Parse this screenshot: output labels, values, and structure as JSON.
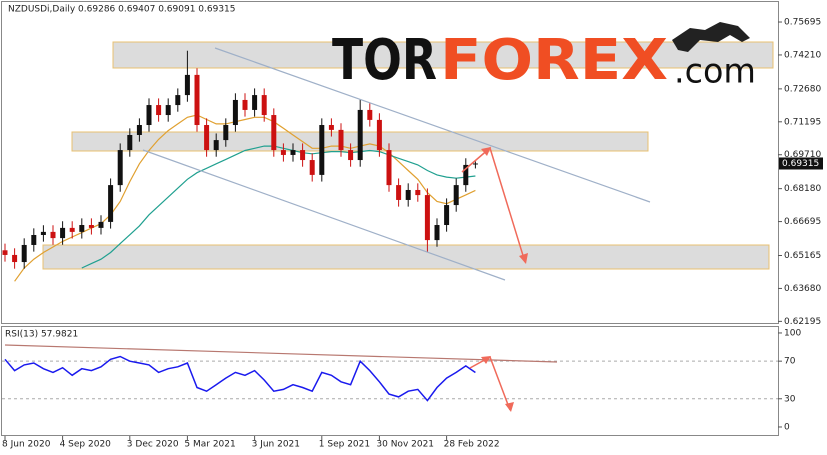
{
  "chart_data": [
    {
      "type": "candlestick",
      "title": "NZDUSDi,Daily  0.69286 0.69407 0.69091 0.69315",
      "categories": [
        "8 Jun 2020",
        null,
        null,
        null,
        null,
        null,
        "4 Sep 2020",
        null,
        null,
        null,
        null,
        null,
        null,
        "3 Dec 2020",
        null,
        null,
        null,
        null,
        null,
        "5 Mar 2021",
        null,
        null,
        null,
        null,
        null,
        null,
        "3 Jun 2021",
        null,
        null,
        null,
        null,
        null,
        null,
        "1 Sep 2021",
        null,
        null,
        null,
        null,
        null,
        "30 Nov 2021",
        null,
        null,
        null,
        null,
        null,
        null,
        "28 Feb 2022",
        null,
        null,
        null
      ],
      "open": [
        0.654,
        0.6519,
        0.6487,
        0.6564,
        0.6609,
        0.6623,
        0.6595,
        0.6641,
        0.6623,
        0.6654,
        0.6641,
        0.6668,
        0.6834,
        0.6992,
        0.706,
        0.7105,
        0.7195,
        0.715,
        0.7195,
        0.724,
        0.7331,
        0.7105,
        0.6992,
        0.7037,
        0.7105,
        0.7218,
        0.7173,
        0.724,
        0.715,
        0.6992,
        0.697,
        0.6992,
        0.6947,
        0.688,
        0.7105,
        0.7083,
        0.6992,
        0.6947,
        0.7173,
        0.7128,
        0.6992,
        0.6834,
        0.6767,
        0.6812,
        0.6789,
        0.6586,
        0.6654,
        0.6744,
        0.6834,
        0.69286
      ],
      "high": [
        0.657,
        0.6549,
        0.6594,
        0.6639,
        0.6653,
        0.6653,
        0.6671,
        0.6671,
        0.6684,
        0.6684,
        0.6698,
        0.6864,
        0.7022,
        0.709,
        0.7135,
        0.7225,
        0.7225,
        0.7225,
        0.727,
        0.744,
        0.7361,
        0.7135,
        0.7067,
        0.7135,
        0.7248,
        0.7248,
        0.727,
        0.727,
        0.718,
        0.7022,
        0.7022,
        0.7022,
        0.6977,
        0.7135,
        0.7135,
        0.7113,
        0.7022,
        0.722,
        0.7203,
        0.7158,
        0.7022,
        0.6864,
        0.6842,
        0.6842,
        0.6819,
        0.6684,
        0.6774,
        0.6864,
        0.6955,
        0.69407
      ],
      "low": [
        0.6489,
        0.6457,
        0.6457,
        0.6534,
        0.6579,
        0.6565,
        0.6565,
        0.6593,
        0.6593,
        0.6611,
        0.6611,
        0.6638,
        0.6804,
        0.6962,
        0.703,
        0.7075,
        0.712,
        0.712,
        0.7165,
        0.721,
        0.7075,
        0.6962,
        0.6962,
        0.7007,
        0.7075,
        0.7143,
        0.7143,
        0.712,
        0.6962,
        0.694,
        0.694,
        0.6917,
        0.685,
        0.685,
        0.7053,
        0.6962,
        0.6917,
        0.6917,
        0.7098,
        0.6962,
        0.6804,
        0.6737,
        0.6737,
        0.6759,
        0.653,
        0.6556,
        0.6624,
        0.6714,
        0.6804,
        0.69091
      ],
      "close": [
        0.6519,
        0.6487,
        0.6564,
        0.6609,
        0.6623,
        0.6595,
        0.6641,
        0.6623,
        0.6654,
        0.6641,
        0.6668,
        0.6834,
        0.6992,
        0.706,
        0.7105,
        0.7195,
        0.715,
        0.7195,
        0.724,
        0.7331,
        0.7105,
        0.6992,
        0.7037,
        0.7105,
        0.7218,
        0.7173,
        0.724,
        0.715,
        0.6992,
        0.697,
        0.6992,
        0.6947,
        0.688,
        0.7105,
        0.7083,
        0.6992,
        0.6947,
        0.7173,
        0.7128,
        0.6992,
        0.6834,
        0.6767,
        0.6812,
        0.6789,
        0.6586,
        0.6654,
        0.6744,
        0.6834,
        0.6925,
        0.69315
      ],
      "up_color": "#111111",
      "down_color": "#cc1111",
      "moving_averages": [
        {
          "color": "#e0a030",
          "values": [
            null,
            0.64,
            0.646,
            0.65,
            0.653,
            0.6555,
            0.658,
            0.66,
            0.662,
            0.664,
            0.666,
            0.67,
            0.676,
            0.685,
            0.693,
            0.699,
            0.704,
            0.708,
            0.711,
            0.714,
            0.715,
            0.713,
            0.711,
            0.711,
            0.712,
            0.713,
            0.714,
            0.714,
            0.712,
            0.709,
            0.706,
            0.703,
            0.7,
            0.7,
            0.701,
            0.701,
            0.7,
            0.701,
            0.702,
            0.701,
            0.698,
            0.694,
            0.69,
            0.686,
            0.68,
            0.676,
            0.675,
            0.677,
            0.679,
            0.681
          ]
        },
        {
          "color": "#20a090",
          "values": [
            null,
            null,
            null,
            null,
            null,
            null,
            null,
            null,
            0.646,
            0.648,
            0.65,
            0.653,
            0.657,
            0.661,
            0.665,
            0.67,
            0.674,
            0.678,
            0.682,
            0.686,
            0.689,
            0.691,
            0.693,
            0.695,
            0.697,
            0.699,
            0.7,
            0.701,
            0.701,
            0.7,
            0.699,
            0.698,
            0.6975,
            0.698,
            0.6985,
            0.6985,
            0.698,
            0.6985,
            0.699,
            0.6985,
            0.697,
            0.6955,
            0.694,
            0.6925,
            0.69,
            0.688,
            0.687,
            0.6865,
            0.687,
            0.6875
          ]
        }
      ],
      "ylim": [
        0.62121,
        0.76688
      ],
      "yticks": [
        0.75695,
        {
          "value": 0.7421,
          "label": "0.74210"
        },
        {
          "value": 0.7268,
          "label": "0.72680"
        },
        0.71195,
        {
          "value": 0.6971,
          "label": "0.69710"
        },
        {
          "value": 0.6818,
          "label": "0.68180"
        },
        0.66695,
        0.65165,
        {
          "value": 0.6368,
          "label": "0.63680"
        },
        0.62195
      ]
    },
    {
      "type": "line",
      "title": "RSI(13) 57.9821",
      "color": "#1a1aee",
      "values": [
        72,
        60,
        66,
        68,
        62,
        58,
        63,
        55,
        62,
        60,
        64,
        72,
        75,
        70,
        68,
        66,
        58,
        62,
        64,
        68,
        42,
        38,
        45,
        52,
        58,
        55,
        60,
        50,
        38,
        40,
        45,
        42,
        38,
        58,
        55,
        48,
        45,
        70,
        60,
        48,
        35,
        32,
        38,
        40,
        28,
        42,
        52,
        58,
        65,
        57.98
      ],
      "ylim": [
        -9.6,
        107.4
      ],
      "yticks": [
        0,
        30,
        70,
        100
      ]
    }
  ],
  "watermark": [
    "TOR",
    "FOREX",
    ".com"
  ]
}
